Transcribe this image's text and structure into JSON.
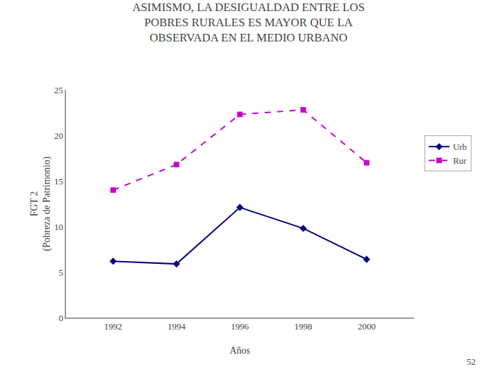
{
  "chart_data": {
    "type": "line",
    "title": "ASIMISMO, LA DESIGUALDAD ENTRE LOS\nPOBRES RURALES ES MAYOR QUE LA\nOBSERVADA EN EL MEDIO URBANO",
    "x_label": "Años",
    "y_label": "FGT 2\n(Pobreza de Patrimonio)",
    "x": [
      1992,
      1994,
      1996,
      1998,
      2000
    ],
    "series": [
      {
        "name": "Urb",
        "color": "#000080",
        "marker": "diamond",
        "line_style": "solid",
        "values": [
          6.2,
          5.9,
          12.1,
          9.8,
          6.4
        ]
      },
      {
        "name": "Rur",
        "color": "#CC00CC",
        "marker": "square",
        "line_style": "dash",
        "values": [
          14.0,
          16.8,
          22.3,
          22.8,
          17.0
        ]
      }
    ],
    "xlim": [
      1990.5,
      2001.5
    ],
    "xticks": [
      1992,
      1994,
      1996,
      1998,
      2000
    ],
    "ylim": [
      0,
      25
    ],
    "yticks": [
      0,
      5,
      10,
      15,
      20,
      25
    ],
    "grid": false,
    "legend": "right",
    "annotations": [
      "52"
    ]
  }
}
